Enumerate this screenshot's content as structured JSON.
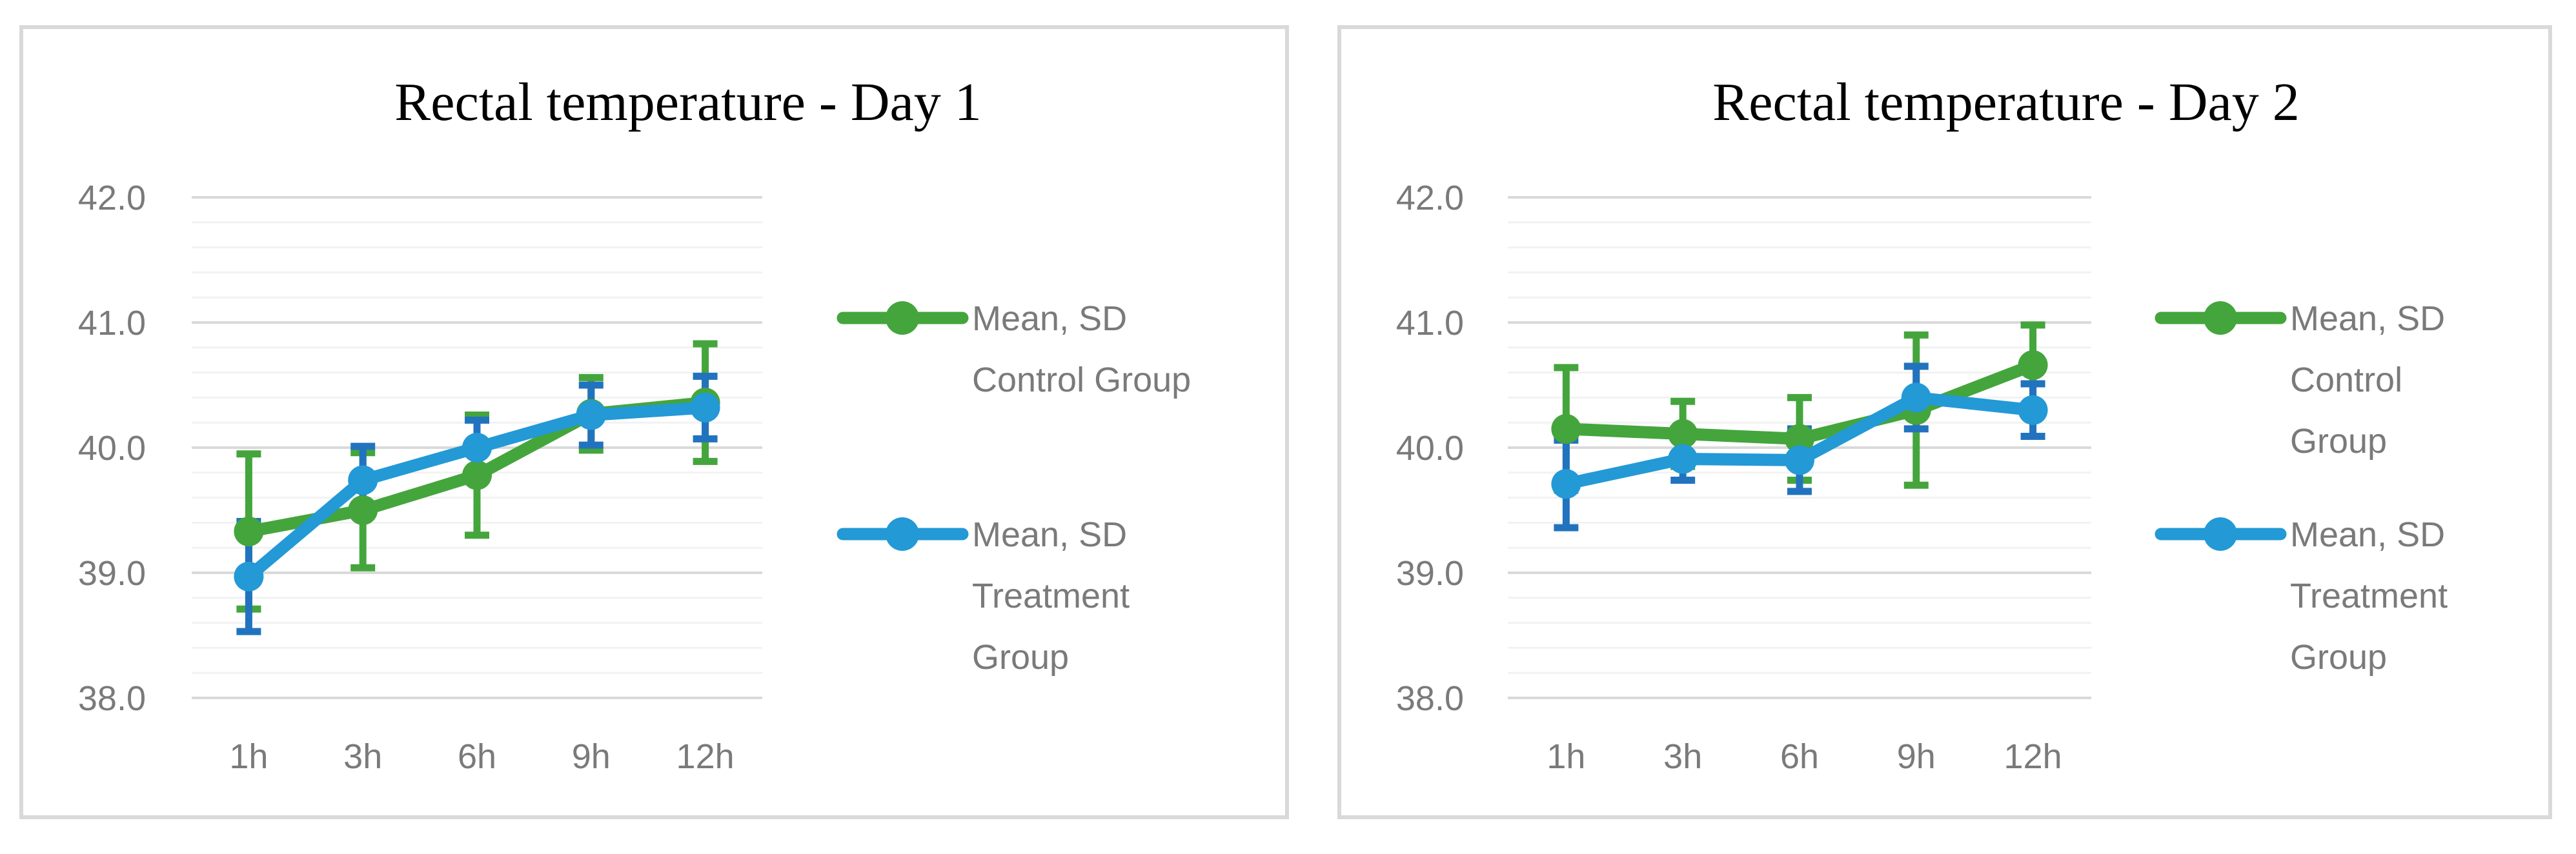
{
  "page": {
    "background_color": "#FFFFFF",
    "panel_border_color": "#D9D9D9",
    "grid_major_color": "#D9D9D9",
    "grid_minor_color": "#F2F2F2",
    "axis_text_color": "#7A7A7A",
    "title_text_color": "#000000"
  },
  "chart_data": [
    {
      "type": "line",
      "title": "Rectal temperature - Day 1",
      "categories": [
        "1h",
        "3h",
        "6h",
        "9h",
        "12h"
      ],
      "xlabel": "",
      "ylabel": "",
      "ylim": [
        38.0,
        42.0
      ],
      "y_major_step": 1.0,
      "y_minor_step": 0.2,
      "y_tick_labels": [
        "42.0",
        "41.0",
        "40.0",
        "39.0",
        "38.0"
      ],
      "grid": true,
      "legend_position": "right",
      "error_bars": "standard deviation",
      "series": [
        {
          "name": "Mean, SD Control Group",
          "legend_lines": [
            "Mean, SD",
            "Control Group"
          ],
          "color": "#44A53C",
          "error_color": "#44A53C",
          "values": [
            39.33,
            39.5,
            39.78,
            40.27,
            40.36
          ],
          "sd": [
            0.62,
            0.46,
            0.48,
            0.29,
            0.47
          ]
        },
        {
          "name": "Mean, SD Treatment Group",
          "legend_lines": [
            "Mean, SD",
            "Treatment",
            "Group"
          ],
          "color": "#2399D6",
          "error_color": "#2273BE",
          "values": [
            38.97,
            39.74,
            40.0,
            40.26,
            40.32
          ],
          "sd": [
            0.44,
            0.27,
            0.22,
            0.24,
            0.25
          ]
        }
      ]
    },
    {
      "type": "line",
      "title": "Rectal temperature - Day 2",
      "categories": [
        "1h",
        "3h",
        "6h",
        "9h",
        "12h"
      ],
      "xlabel": "",
      "ylabel": "",
      "ylim": [
        38.0,
        42.0
      ],
      "y_major_step": 1.0,
      "y_minor_step": 0.2,
      "y_tick_labels": [
        "42.0",
        "41.0",
        "40.0",
        "39.0",
        "38.0"
      ],
      "grid": true,
      "legend_position": "right",
      "error_bars": "standard deviation",
      "series": [
        {
          "name": "Mean, SD Control Group",
          "legend_lines": [
            "Mean, SD",
            "Control",
            "Group"
          ],
          "color": "#44A53C",
          "error_color": "#44A53C",
          "values": [
            40.15,
            40.11,
            40.07,
            40.3,
            40.66
          ],
          "sd": [
            0.49,
            0.26,
            0.33,
            0.6,
            0.32
          ]
        },
        {
          "name": "Mean, SD Treatment Group",
          "legend_lines": [
            "Mean, SD",
            "Treatment",
            "Group"
          ],
          "color": "#2399D6",
          "error_color": "#2273BE",
          "values": [
            39.71,
            39.91,
            39.9,
            40.4,
            40.3
          ],
          "sd": [
            0.35,
            0.17,
            0.25,
            0.25,
            0.21
          ]
        }
      ]
    }
  ]
}
